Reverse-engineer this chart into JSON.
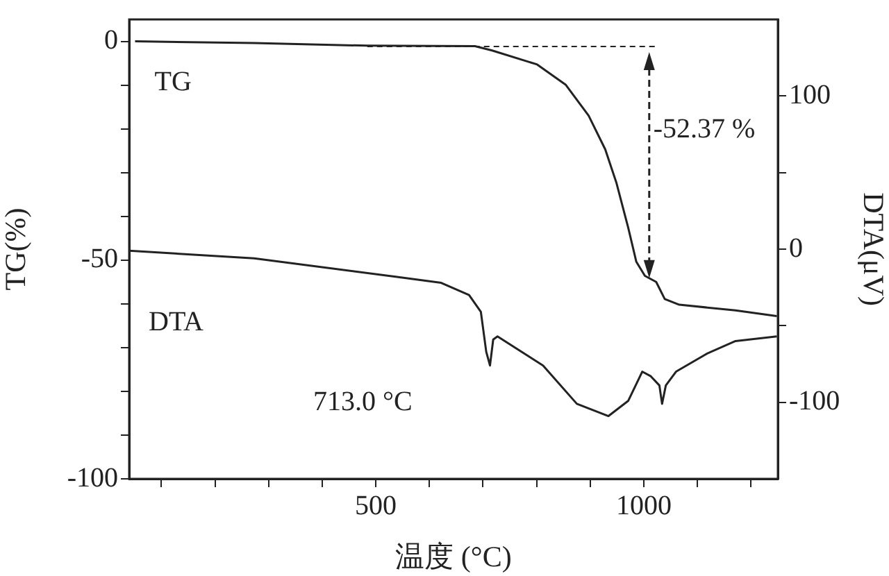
{
  "chart_data": {
    "type": "line",
    "xlabel": "温度 (°C)",
    "ylabel": "TG(%)",
    "y2label": "DTA(μV)",
    "xlim": [
      40,
      1250
    ],
    "xticks": [
      {
        "value": 100,
        "label": null
      },
      {
        "value": 200,
        "label": null
      },
      {
        "value": 300,
        "label": null
      },
      {
        "value": 400,
        "label": null
      },
      500,
      {
        "value": 600,
        "label": null
      },
      {
        "value": 700,
        "label": null
      },
      {
        "value": 800,
        "label": null
      },
      {
        "value": 900,
        "label": null
      },
      1000,
      {
        "value": 1100,
        "label": null
      },
      {
        "value": 1200,
        "label": null
      }
    ],
    "ylim": [
      -100,
      5
    ],
    "yticks": [
      -100,
      {
        "value": -90,
        "label": null
      },
      {
        "value": -80,
        "label": null
      },
      {
        "value": -70,
        "label": null
      },
      {
        "value": -60,
        "label": null
      },
      -50,
      {
        "value": -40,
        "label": null
      },
      {
        "value": -30,
        "label": null
      },
      {
        "value": -20,
        "label": null
      },
      {
        "value": -10,
        "label": null
      },
      0
    ],
    "y2lim": [
      -150,
      150
    ],
    "y2ticks": [
      -100,
      {
        "value": -50,
        "label": null
      },
      0,
      {
        "value": 50,
        "label": null
      },
      100
    ],
    "grid": false,
    "legend": "top left",
    "marker": "none",
    "series": [
      {
        "name": "TG",
        "color": "#222222",
        "axis": "y",
        "x": [
          51,
          273,
          484,
          685,
          717,
          801,
          854,
          897,
          928,
          949,
          971,
          986,
          1002,
          1023,
          1039,
          1066,
          1171,
          1248
        ],
        "values": [
          0,
          -0.4,
          -1.0,
          -1.1,
          -2.1,
          -5.3,
          -9.9,
          -17,
          -24.7,
          -32.4,
          -42.7,
          -50.4,
          -53.6,
          -55,
          -58.9,
          -60.2,
          -61.5,
          -62.8
        ]
      },
      {
        "name": "DTA",
        "color": "#222222",
        "axis": "y2",
        "x": [
          40,
          273,
          537,
          622,
          674,
          696,
          706,
          713,
          719,
          727,
          812,
          875,
          934,
          971,
          997,
          1013,
          1029,
          1034,
          1041,
          1060,
          1119,
          1171,
          1248
        ],
        "values": [
          -1,
          -6,
          -18,
          -22,
          -30,
          -41,
          -67,
          -76,
          -59,
          -57,
          -76,
          -101,
          -109,
          -99,
          -80,
          -83,
          -89,
          -101,
          -89,
          -80,
          -68,
          -60,
          -57
        ]
      },
      {
        "color": "#222222",
        "axis": "y",
        "line_style": "dashed",
        "x": [
          484,
          1023
        ],
        "values": [
          -1.2,
          -1.2
        ]
      }
    ],
    "annotations": [
      "-52.37 %",
      "713.0 °C"
    ]
  }
}
